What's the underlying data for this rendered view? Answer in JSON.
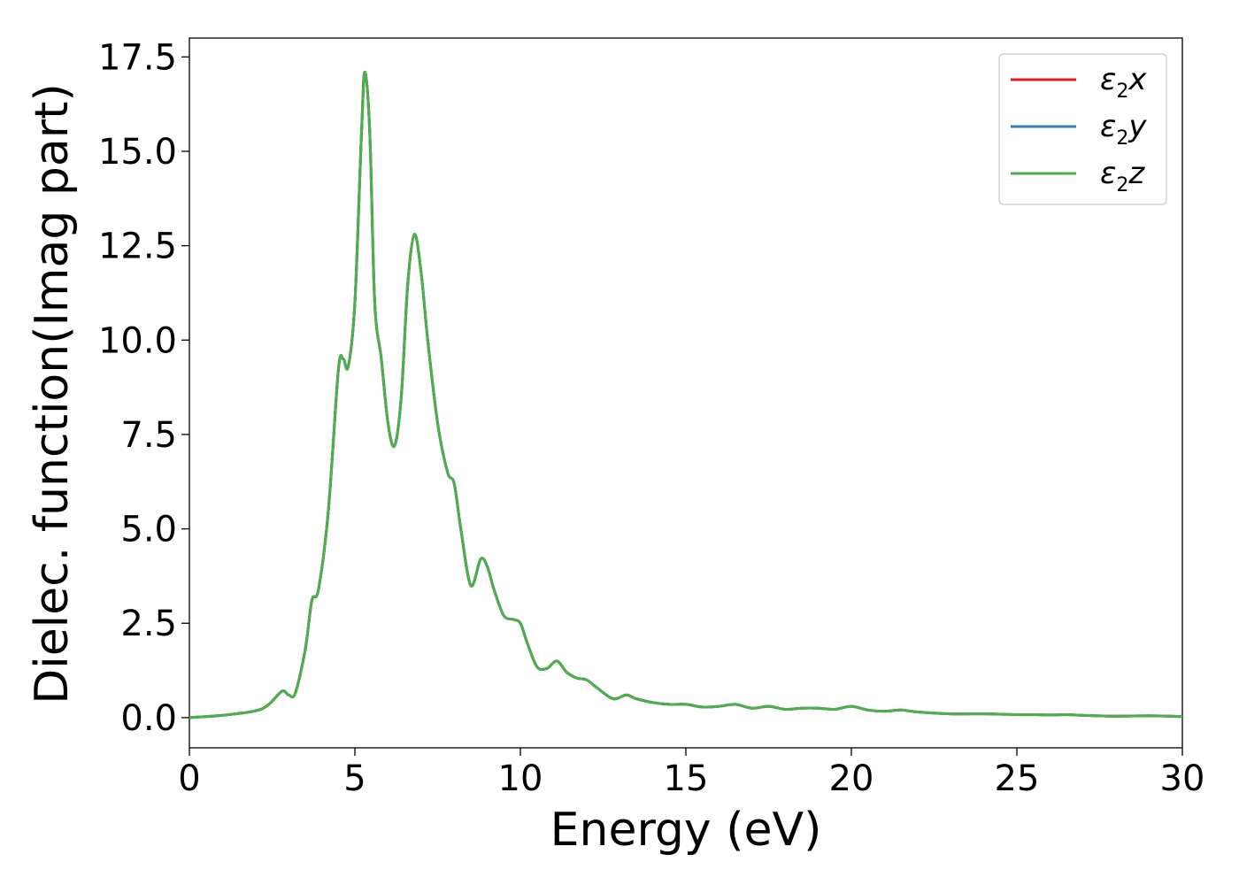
{
  "chart_data": {
    "type": "line",
    "xlabel": "Energy (eV)",
    "ylabel": "Dielec. function(Imag part)",
    "xlim": [
      0,
      30
    ],
    "ylim": [
      -0.8,
      18.0
    ],
    "xticks": [
      0,
      5,
      10,
      15,
      20,
      25,
      30
    ],
    "xtick_labels": [
      "0",
      "5",
      "10",
      "15",
      "20",
      "25",
      "30"
    ],
    "yticks": [
      0.0,
      2.5,
      5.0,
      7.5,
      10.0,
      12.5,
      15.0,
      17.5
    ],
    "ytick_labels": [
      "0.0",
      "2.5",
      "5.0",
      "7.5",
      "10.0",
      "12.5",
      "15.0",
      "17.5"
    ],
    "grid": false,
    "legend_position": "top-right",
    "series": [
      {
        "name": "ε₂x",
        "symbol": "ε",
        "subscript": "2",
        "suffix": "x",
        "color": "#e41a1c"
      },
      {
        "name": "ε₂y",
        "symbol": "ε",
        "subscript": "2",
        "suffix": "y",
        "color": "#377eb8"
      },
      {
        "name": "ε₂z",
        "symbol": "ε",
        "subscript": "2",
        "suffix": "z",
        "color": "#4daf4a"
      }
    ],
    "x": [
      0,
      1,
      2,
      2.4,
      2.8,
      3.0,
      3.2,
      3.5,
      3.7,
      3.9,
      4.2,
      4.5,
      4.65,
      4.8,
      5.0,
      5.2,
      5.3,
      5.45,
      5.6,
      5.8,
      6.0,
      6.2,
      6.4,
      6.6,
      6.8,
      7.0,
      7.2,
      7.5,
      7.8,
      8.0,
      8.2,
      8.5,
      8.8,
      9.0,
      9.2,
      9.5,
      9.8,
      10.0,
      10.2,
      10.5,
      10.8,
      11.1,
      11.4,
      11.7,
      12.0,
      12.3,
      12.8,
      13.2,
      13.5,
      14.0,
      14.5,
      15.0,
      15.5,
      16.0,
      16.5,
      17.0,
      17.5,
      18.0,
      18.5,
      19.0,
      19.5,
      20.0,
      20.5,
      21.0,
      21.5,
      22.0,
      23.0,
      24.0,
      25.0,
      25.5,
      26.0,
      26.5,
      27.0,
      28.0,
      29.0,
      30.0
    ],
    "values": [
      0.0,
      0.06,
      0.18,
      0.35,
      0.7,
      0.6,
      0.65,
      1.8,
      3.1,
      3.4,
      5.5,
      9.2,
      9.5,
      9.3,
      11.0,
      15.5,
      17.1,
      15.5,
      11.0,
      9.5,
      7.8,
      7.2,
      8.5,
      11.5,
      12.8,
      11.8,
      10.0,
      7.8,
      6.5,
      6.2,
      5.0,
      3.5,
      4.2,
      4.0,
      3.4,
      2.7,
      2.6,
      2.5,
      2.0,
      1.35,
      1.3,
      1.5,
      1.2,
      1.05,
      1.0,
      0.8,
      0.5,
      0.6,
      0.5,
      0.4,
      0.35,
      0.35,
      0.28,
      0.3,
      0.35,
      0.25,
      0.3,
      0.22,
      0.25,
      0.25,
      0.22,
      0.3,
      0.2,
      0.17,
      0.2,
      0.15,
      0.1,
      0.1,
      0.08,
      0.08,
      0.07,
      0.08,
      0.06,
      0.04,
      0.05,
      0.03
    ]
  }
}
